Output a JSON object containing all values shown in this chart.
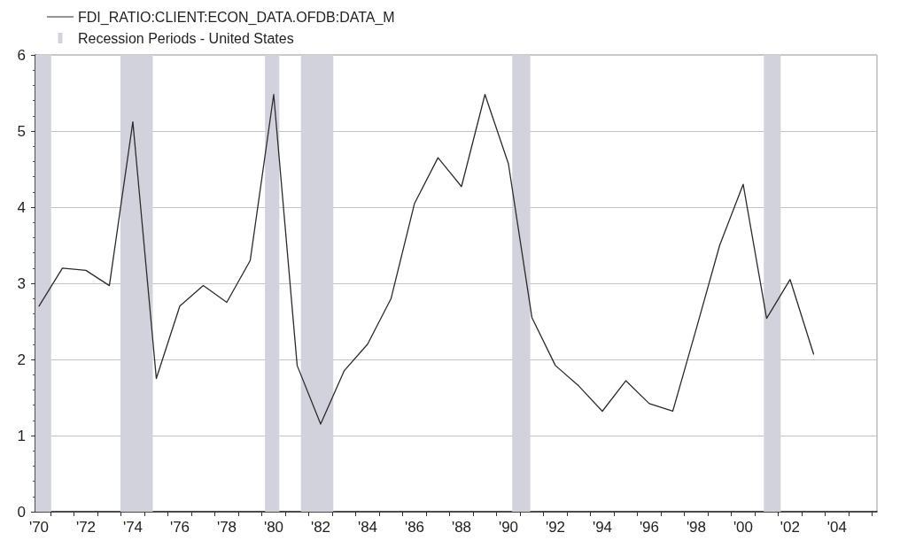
{
  "chart_data": {
    "type": "line",
    "x": [
      1970,
      1971,
      1972,
      1973,
      1974,
      1975,
      1976,
      1977,
      1978,
      1979,
      1980,
      1981,
      1982,
      1983,
      1984,
      1985,
      1986,
      1987,
      1988,
      1989,
      1990,
      1991,
      1992,
      1993,
      1994,
      1995,
      1996,
      1997,
      1998,
      1999,
      2000,
      2001,
      2002,
      2003
    ],
    "series": [
      {
        "name": "FDI_RATIO:CLIENT:ECON_DATA.OFDB:DATA_M",
        "color": "#2b2b2b",
        "values": [
          2.7,
          3.2,
          3.17,
          2.97,
          5.12,
          1.75,
          2.7,
          2.97,
          2.75,
          3.3,
          5.48,
          1.92,
          1.15,
          1.85,
          2.2,
          2.8,
          4.05,
          4.65,
          4.27,
          5.48,
          4.57,
          2.55,
          1.92,
          1.65,
          1.32,
          1.72,
          1.42,
          1.32,
          2.4,
          3.5,
          4.3,
          2.54,
          3.05,
          2.07
        ]
      }
    ],
    "xlim": [
      1969.85,
      2005.7
    ],
    "xticks": [
      {
        "value": 1970,
        "label": "'70"
      },
      {
        "value": 1972,
        "label": "'72"
      },
      {
        "value": 1974,
        "label": "'74"
      },
      {
        "value": 1976,
        "label": "'76"
      },
      {
        "value": 1978,
        "label": "'78"
      },
      {
        "value": 1980,
        "label": "'80"
      },
      {
        "value": 1982,
        "label": "'82"
      },
      {
        "value": 1984,
        "label": "'84"
      },
      {
        "value": 1986,
        "label": "'86"
      },
      {
        "value": 1988,
        "label": "'88"
      },
      {
        "value": 1990,
        "label": "'90"
      },
      {
        "value": 1992,
        "label": "'92"
      },
      {
        "value": 1994,
        "label": "'94"
      },
      {
        "value": 1996,
        "label": "'96"
      },
      {
        "value": 1998,
        "label": "'98"
      },
      {
        "value": 2000,
        "label": "'00"
      },
      {
        "value": 2002,
        "label": "'02"
      },
      {
        "value": 2004,
        "label": "'04"
      },
      {
        "value": 1970.5,
        "label": null
      },
      {
        "value": 1971.5,
        "label": null
      },
      {
        "value": 1972.5,
        "label": null
      },
      {
        "value": 1973.5,
        "label": null
      },
      {
        "value": 1974.5,
        "label": null
      },
      {
        "value": 1975.5,
        "label": null
      },
      {
        "value": 1976.5,
        "label": null
      },
      {
        "value": 1977.5,
        "label": null
      },
      {
        "value": 1978.5,
        "label": null
      },
      {
        "value": 1979.5,
        "label": null
      },
      {
        "value": 1980.5,
        "label": null
      },
      {
        "value": 1981.5,
        "label": null
      },
      {
        "value": 1982.5,
        "label": null
      },
      {
        "value": 1983.5,
        "label": null
      },
      {
        "value": 1984.5,
        "label": null
      },
      {
        "value": 1985.5,
        "label": null
      },
      {
        "value": 1986.5,
        "label": null
      },
      {
        "value": 1987.5,
        "label": null
      },
      {
        "value": 1988.5,
        "label": null
      },
      {
        "value": 1989.5,
        "label": null
      },
      {
        "value": 1990.5,
        "label": null
      },
      {
        "value": 1991.5,
        "label": null
      },
      {
        "value": 1992.5,
        "label": null
      },
      {
        "value": 1993.5,
        "label": null
      },
      {
        "value": 1994.5,
        "label": null
      },
      {
        "value": 1995.5,
        "label": null
      },
      {
        "value": 1996.5,
        "label": null
      },
      {
        "value": 1997.5,
        "label": null
      },
      {
        "value": 1998.5,
        "label": null
      },
      {
        "value": 1999.5,
        "label": null
      },
      {
        "value": 2000.5,
        "label": null
      },
      {
        "value": 2001.5,
        "label": null
      },
      {
        "value": 2002.5,
        "label": null
      },
      {
        "value": 2003.5,
        "label": null
      },
      {
        "value": 2004.5,
        "label": null
      },
      {
        "value": 2005.5,
        "label": null
      }
    ],
    "ylim": [
      0,
      6
    ],
    "yticks": [
      0,
      1,
      2,
      3,
      4,
      5,
      6,
      {
        "value": 0.2,
        "label": null
      },
      {
        "value": 0.4,
        "label": null
      },
      {
        "value": 0.6,
        "label": null
      },
      {
        "value": 0.8,
        "label": null
      },
      {
        "value": 1.2,
        "label": null
      },
      {
        "value": 1.4,
        "label": null
      },
      {
        "value": 1.6,
        "label": null
      },
      {
        "value": 1.8,
        "label": null
      },
      {
        "value": 2.2,
        "label": null
      },
      {
        "value": 2.4,
        "label": null
      },
      {
        "value": 2.6,
        "label": null
      },
      {
        "value": 2.8,
        "label": null
      },
      {
        "value": 3.2,
        "label": null
      },
      {
        "value": 3.4,
        "label": null
      },
      {
        "value": 3.6,
        "label": null
      },
      {
        "value": 3.8,
        "label": null
      },
      {
        "value": 4.2,
        "label": null
      },
      {
        "value": 4.4,
        "label": null
      },
      {
        "value": 4.6,
        "label": null
      },
      {
        "value": 4.8,
        "label": null
      },
      {
        "value": 5.2,
        "label": null
      },
      {
        "value": 5.4,
        "label": null
      },
      {
        "value": 5.6,
        "label": null
      },
      {
        "value": 5.8,
        "label": null
      }
    ],
    "grid": "y",
    "legend": "top left",
    "marker": "none",
    "line_style": "solid",
    "bands": [
      {
        "axis": "x",
        "from": 1969.85,
        "to": 1970.52,
        "label": "Recession Periods - United States",
        "color": "#d2d2dc"
      },
      {
        "axis": "x",
        "from": 1973.47,
        "to": 1974.85,
        "color": "#d2d2dc"
      },
      {
        "axis": "x",
        "from": 1979.63,
        "to": 1980.24,
        "color": "#d2d2dc"
      },
      {
        "axis": "x",
        "from": 1981.16,
        "to": 1982.54,
        "color": "#d2d2dc"
      },
      {
        "axis": "x",
        "from": 1990.16,
        "to": 1990.93,
        "color": "#d2d2dc"
      },
      {
        "axis": "x",
        "from": 2000.88,
        "to": 2001.6,
        "color": "#d2d2dc"
      }
    ]
  }
}
